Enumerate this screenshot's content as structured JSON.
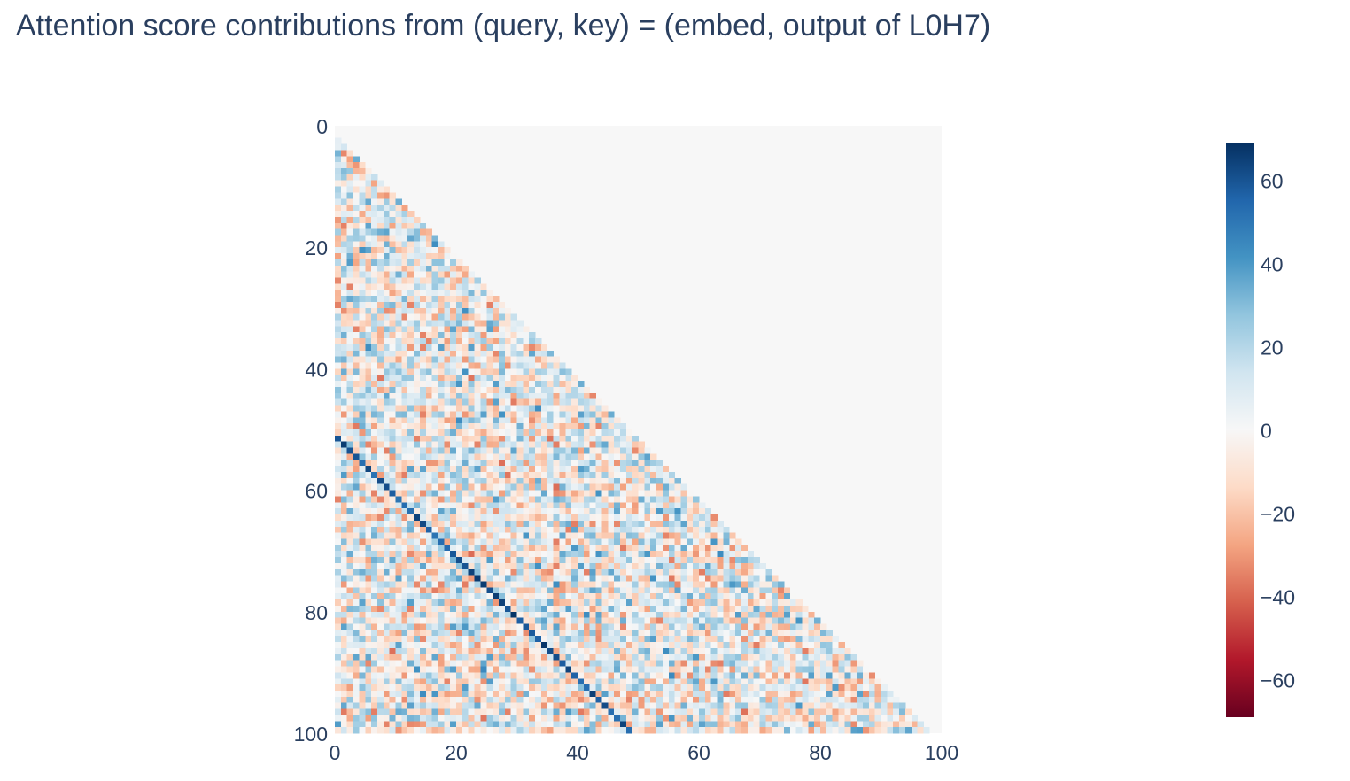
{
  "chart_data": {
    "type": "heatmap",
    "title": "Attention score contributions from (query, key) = (embed, output of L0H7)",
    "xlabel": "",
    "ylabel": "",
    "x_range": [
      0,
      100
    ],
    "y_range": [
      0,
      100
    ],
    "y_reversed": true,
    "x_ticks": [
      0,
      20,
      40,
      60,
      80,
      100
    ],
    "y_ticks": [
      0,
      20,
      40,
      60,
      80,
      100
    ],
    "n_rows": 100,
    "n_cols": 100,
    "masked_region": "upper-right triangle (key position > query position - 2)",
    "masked_color": "#f7f7f7",
    "value_noise_range": [
      -40,
      45
    ],
    "diagonal_band": {
      "start": [
        51,
        0
      ],
      "end": [
        100,
        50
      ],
      "value_range": [
        50,
        68
      ]
    },
    "colorscale": "RdBu",
    "colorscale_stops": [
      [
        0.0,
        "#67001f"
      ],
      [
        0.1,
        "#b2182b"
      ],
      [
        0.2,
        "#d6604d"
      ],
      [
        0.3,
        "#f4a582"
      ],
      [
        0.4,
        "#fddbc7"
      ],
      [
        0.5,
        "#f7f7f7"
      ],
      [
        0.6,
        "#d1e5f0"
      ],
      [
        0.7,
        "#92c5de"
      ],
      [
        0.8,
        "#4393c3"
      ],
      [
        0.9,
        "#2166ac"
      ],
      [
        1.0,
        "#053061"
      ]
    ],
    "zmin": -69,
    "zmax": 69,
    "colorbar_ticks": [
      60,
      40,
      20,
      0,
      -20,
      -40,
      -60
    ],
    "colorbar_tick_labels": [
      "60",
      "40",
      "20",
      "0",
      "−20",
      "−40",
      "−60"
    ]
  }
}
